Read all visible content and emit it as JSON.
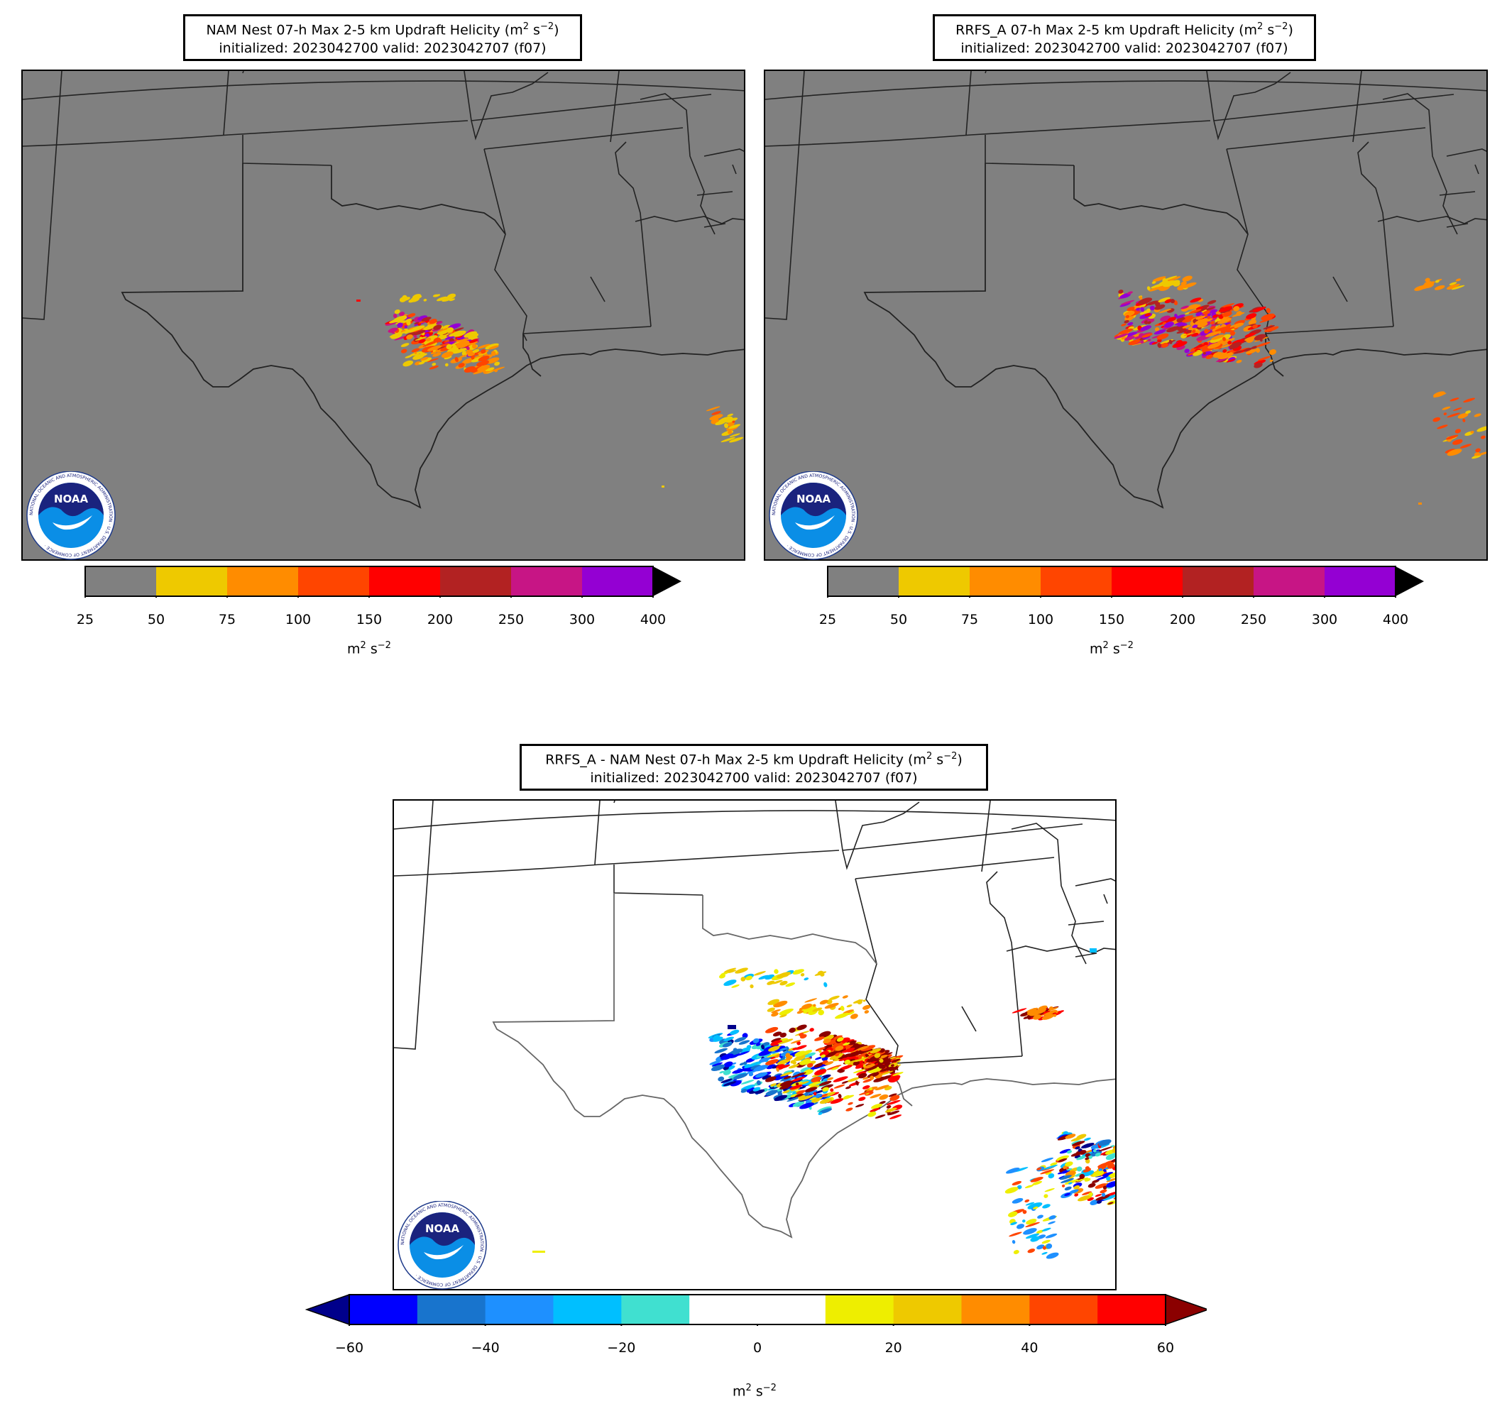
{
  "panels": [
    {
      "id": "nam",
      "title_line1_pre": "NAM Nest 07-h Max 2-5 km Updraft Helicity (m",
      "title_sup1": "2",
      "title_mid": " s",
      "title_sup2": "−2",
      "title_post": ")",
      "title_line2": "initialized: 2023042700 valid: 2023042707 (f07)",
      "background": "#808080"
    },
    {
      "id": "rrfs",
      "title_line1_pre": "RRFS_A 07-h Max 2-5 km Updraft Helicity (m",
      "title_sup1": "2",
      "title_mid": " s",
      "title_sup2": "−2",
      "title_post": ")",
      "title_line2": "initialized: 2023042700 valid: 2023042707 (f07)",
      "background": "#808080"
    },
    {
      "id": "diff",
      "title_line1_pre": "RRFS_A - NAM Nest 07-h Max 2-5 km Updraft Helicity (m",
      "title_sup1": "2",
      "title_mid": " s",
      "title_sup2": "−2",
      "title_post": ")",
      "title_line2": "initialized: 2023042700 valid: 2023042707 (f07)",
      "background": "#ffffff"
    }
  ],
  "colorbar_uh": {
    "bounds": [
      "25",
      "50",
      "75",
      "100",
      "150",
      "200",
      "250",
      "300",
      "400"
    ],
    "colors": [
      "#808080",
      "#eec900",
      "#ff8c00",
      "#ff4500",
      "#ff0000",
      "#b22222",
      "#c71585",
      "#9400d3"
    ],
    "extend_max_color": "#000000",
    "unit_base": "m",
    "unit_sup1": "2",
    "unit_mid": " s",
    "unit_sup2": "−2"
  },
  "colorbar_diff": {
    "ticks": [
      "−60",
      "−40",
      "−20",
      "0",
      "20",
      "40",
      "60"
    ],
    "colors": [
      "#0000ff",
      "#1874cd",
      "#1e90ff",
      "#00bfff",
      "#40e0d0",
      "#ffffff",
      "#ffffff",
      "#eeee00",
      "#eec900",
      "#ff8c00",
      "#ff4500",
      "#ff0000"
    ],
    "extend_min_color": "#00008b",
    "extend_max_color": "#8b0000",
    "unit_base": "m",
    "unit_sup1": "2",
    "unit_mid": " s",
    "unit_sup2": "−2"
  },
  "logo": {
    "text": "NOAA",
    "ring_text": "NATIONAL OCEANIC AND ATMOSPHERIC ADMINISTRATION · U.S. DEPARTMENT OF COMMERCE ·"
  }
}
